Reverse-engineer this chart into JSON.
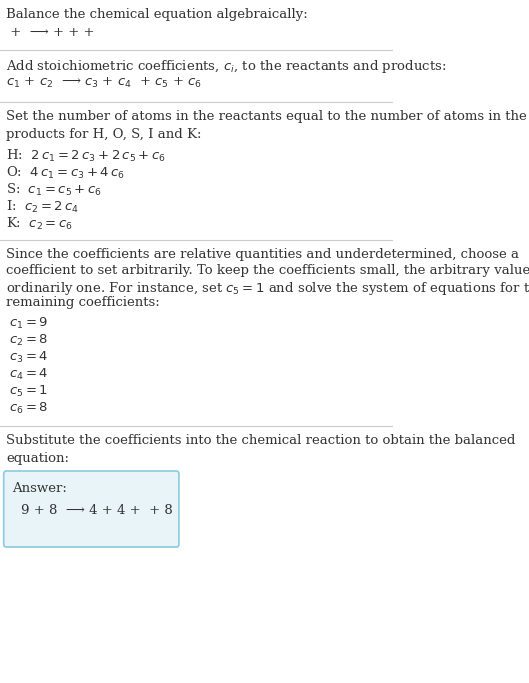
{
  "bg_color": "#ffffff",
  "text_color": "#333333",
  "line_color": "#cccccc",
  "answer_box_color": "#e8f4f8",
  "answer_box_border": "#88ccdd",
  "title": "Balance the chemical equation algebraically:",
  "line1": " +  ⟶ + + + ",
  "section2_title": "Add stoichiometric coefficients, $c_i$, to the reactants and products:",
  "line2": "$c_1$ + $c_2$  ⟶ $c_3$ + $c_4$  + $c_5$ + $c_6$",
  "section3_title": "Set the number of atoms in the reactants equal to the number of atoms in the\nproducts for H, O, S, I and K:",
  "equations": [
    "H:  $2\\,c_1 = 2\\,c_3 + 2\\,c_5 + c_6$",
    "O:  $4\\,c_1 = c_3 + 4\\,c_6$",
    "S:  $c_1 = c_5 + c_6$",
    "I:  $c_2 = 2\\,c_4$",
    "K:  $c_2 = c_6$"
  ],
  "section4_para": "Since the coefficients are relative quantities and underdetermined, choose a\ncoefficient to set arbitrarily. To keep the coefficients small, the arbitrary value is\nordinarily one. For instance, set $c_5 = 1$ and solve the system of equations for the\nremaining coefficients:",
  "solutions": [
    "$c_1 = 9$",
    "$c_2 = 8$",
    "$c_3 = 4$",
    "$c_4 = 4$",
    "$c_5 = 1$",
    "$c_6 = 8$"
  ],
  "section5_title": "Substitute the coefficients into the chemical reaction to obtain the balanced\nequation:",
  "answer_label": "Answer:",
  "answer_line": "9 + 8  ⟶ 4 + 4 +  + 8"
}
